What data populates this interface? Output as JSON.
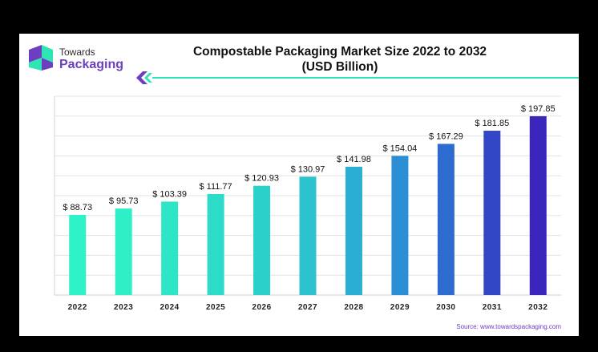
{
  "brand": {
    "line1": "Towards",
    "line2": "Packaging",
    "accent": "#6b3fbf",
    "teal": "#2ee6b5"
  },
  "chart_data": {
    "type": "bar",
    "title_line1": "Compostable Packaging Market Size 2022 to 2032",
    "title_line2": "(USD Billion)",
    "categories": [
      "2022",
      "2023",
      "2024",
      "2025",
      "2026",
      "2027",
      "2028",
      "2029",
      "2030",
      "2031",
      "2032"
    ],
    "values": [
      88.73,
      95.73,
      103.39,
      111.77,
      120.93,
      130.97,
      141.98,
      154.04,
      167.29,
      181.85,
      197.85
    ],
    "data_labels": [
      "$ 88.73",
      "$ 95.73",
      "$ 103.39",
      "$ 111.77",
      "$ 120.93",
      "$ 130.97",
      "$ 141.98",
      "$ 154.04",
      "$ 167.29",
      "$ 181.85",
      "$ 197.85"
    ],
    "colors": [
      "#2ef2c8",
      "#2ef0c8",
      "#2de6c6",
      "#2ddcc8",
      "#2cd0cb",
      "#2cc2cf",
      "#2aaed4",
      "#2c8fd6",
      "#2d6bd1",
      "#3247c6",
      "#3a26bc"
    ],
    "ylim": [
      0,
      220
    ],
    "grid": true,
    "xlabel": "",
    "ylabel": ""
  },
  "source": "Source: www.towardspackaging.com"
}
